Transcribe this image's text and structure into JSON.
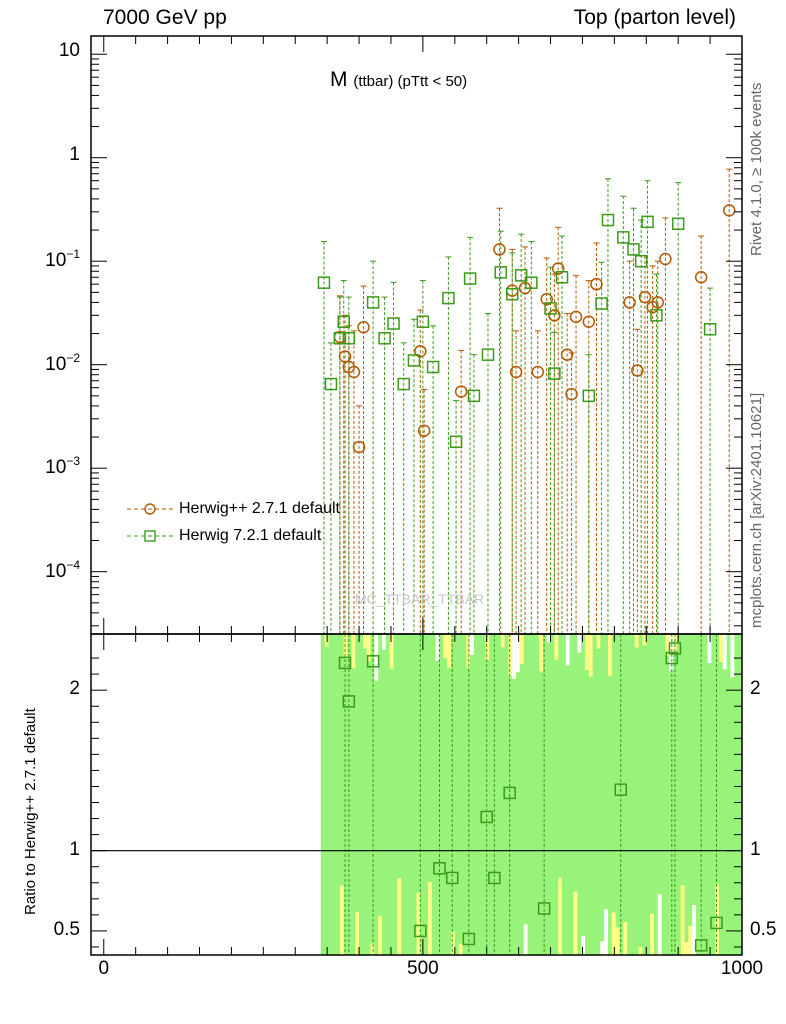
{
  "header": {
    "beam_label": "7000 GeV pp",
    "process_label": "Top (parton level)",
    "plot_title_main": "M",
    "plot_title_sub": "(ttbar) (pTtt < 50)",
    "rivet_label": "Rivet 4.1.0, ≥ 100k events",
    "site_label": "mcplots.cern.ch [arXiv:2401.10621]",
    "watermark": "MC_TTBAR_TTBAR",
    "ratio_ylabel": "Ratio to Herwig++ 2.7.1 default"
  },
  "colors": {
    "herwigpp": "#b35900",
    "herwig7": "#3b9a18",
    "band_green": "#98f37a",
    "band_yellow": "#ffff88"
  },
  "chart_data": {
    "type": "scatter",
    "xlim": [
      -20,
      1000
    ],
    "xticks": [
      0,
      500,
      1000
    ],
    "main_ylim": [
      2.5e-05,
      15
    ],
    "main_yscale": "log",
    "main_yticks": [
      {
        "base": "10",
        "exp": "-4",
        "v": 0.0001
      },
      {
        "base": "10",
        "exp": "-3",
        "v": 0.001
      },
      {
        "base": "10",
        "exp": "-2",
        "v": 0.01
      },
      {
        "base": "10",
        "exp": "-1",
        "v": 0.1
      },
      {
        "base": "1",
        "exp": "",
        "v": 1
      },
      {
        "base": "10",
        "exp": "",
        "v": 10
      }
    ],
    "ratio_ylim": [
      0.35,
      2.35
    ],
    "ratio_yticks": [
      "0.5",
      "1",
      "2"
    ],
    "ratio_yvals": [
      0.5,
      1,
      2
    ],
    "band_from_x": 340,
    "series": [
      {
        "name": "Herwig++ 2.7.1 default",
        "marker": "circle",
        "points": [
          [
            370,
            0.0185
          ],
          [
            378,
            0.012
          ],
          [
            384,
            0.0095
          ],
          [
            392,
            0.0085
          ],
          [
            400,
            0.0016
          ],
          [
            407,
            0.023
          ],
          [
            496,
            0.0135
          ],
          [
            502,
            0.0023
          ],
          [
            560,
            0.0055
          ],
          [
            620,
            0.13
          ],
          [
            640,
            0.052
          ],
          [
            646,
            0.0085
          ],
          [
            660,
            0.055
          ],
          [
            680,
            0.0085
          ],
          [
            694,
            0.043
          ],
          [
            706,
            0.03
          ],
          [
            712,
            0.085
          ],
          [
            726,
            0.0125
          ],
          [
            733,
            0.0052
          ],
          [
            740,
            0.029
          ],
          [
            760,
            0.026
          ],
          [
            772,
            0.06
          ],
          [
            824,
            0.04
          ],
          [
            836,
            0.0088
          ],
          [
            848,
            0.045
          ],
          [
            860,
            0.036
          ],
          [
            868,
            0.04
          ],
          [
            880,
            0.105
          ],
          [
            936,
            0.07
          ],
          [
            980,
            0.31
          ]
        ]
      },
      {
        "name": "Herwig 7.2.1 default",
        "marker": "square",
        "points": [
          [
            345,
            0.062
          ],
          [
            356,
            0.0065
          ],
          [
            370,
            0.018
          ],
          [
            376,
            0.026
          ],
          [
            384,
            0.018
          ],
          [
            422,
            0.04
          ],
          [
            440,
            0.018
          ],
          [
            454,
            0.025
          ],
          [
            470,
            0.0065
          ],
          [
            486,
            0.011
          ],
          [
            500,
            0.026
          ],
          [
            516,
            0.0095
          ],
          [
            540,
            0.044
          ],
          [
            552,
            0.0018
          ],
          [
            574,
            0.068
          ],
          [
            580,
            0.005
          ],
          [
            602,
            0.0125
          ],
          [
            622,
            0.078
          ],
          [
            640,
            0.048
          ],
          [
            654,
            0.073
          ],
          [
            670,
            0.062
          ],
          [
            700,
            0.035
          ],
          [
            706,
            0.0082
          ],
          [
            718,
            0.07
          ],
          [
            760,
            0.005
          ],
          [
            780,
            0.039
          ],
          [
            790,
            0.25
          ],
          [
            814,
            0.17
          ],
          [
            830,
            0.13
          ],
          [
            842,
            0.1
          ],
          [
            852,
            0.24
          ],
          [
            866,
            0.03
          ],
          [
            900,
            0.23
          ],
          [
            950,
            0.022
          ]
        ]
      }
    ],
    "ratio_points": [
      [
        378,
        2.17
      ],
      [
        384,
        1.93
      ],
      [
        422,
        2.18
      ],
      [
        496,
        0.5
      ],
      [
        526,
        0.89
      ],
      [
        546,
        0.83
      ],
      [
        572,
        0.45
      ],
      [
        600,
        1.21
      ],
      [
        612,
        0.83
      ],
      [
        636,
        1.36
      ],
      [
        690,
        0.64
      ],
      [
        810,
        1.38
      ],
      [
        890,
        2.2
      ],
      [
        895,
        2.26
      ],
      [
        936,
        0.41
      ],
      [
        960,
        0.55
      ]
    ]
  }
}
